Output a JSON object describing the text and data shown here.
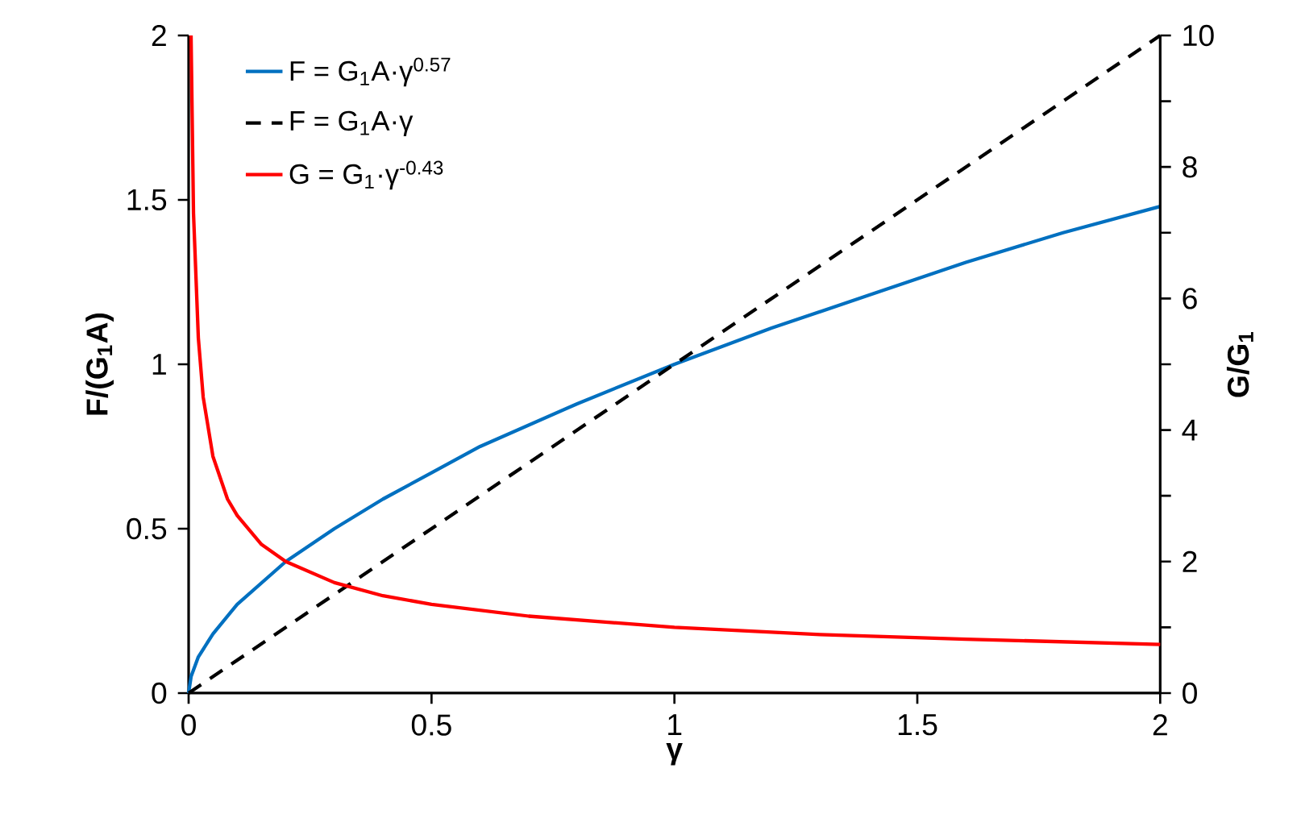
{
  "chart_data": {
    "type": "line",
    "xlabel": "γ",
    "ylabel": "F/(G$_{1}$A)",
    "y2label": "G/G$_{1}$",
    "xlim": [
      0,
      2
    ],
    "ylim": [
      0,
      2
    ],
    "y2lim": [
      0,
      10
    ],
    "xticks": [
      0,
      0.5,
      1,
      1.5,
      2
    ],
    "yticks": [
      0,
      0.5,
      1,
      1.5,
      2
    ],
    "y2ticks": [
      0,
      {
        "value": 1,
        "label": null
      },
      2,
      {
        "value": 3,
        "label": null
      },
      4,
      {
        "value": 5,
        "label": null
      },
      6,
      {
        "value": 7,
        "label": null
      },
      8,
      {
        "value": 9,
        "label": null
      },
      10
    ],
    "legend": "top left",
    "series": [
      {
        "name": "F = G$_{1}$A·γ$^{0.57}$",
        "color": "#0070c0",
        "line_style": "solid",
        "x": [
          0,
          0.005,
          0.02,
          0.05,
          0.1,
          0.2,
          0.3,
          0.4,
          0.5,
          0.6,
          0.8,
          1,
          1.2,
          1.4,
          1.6,
          1.8,
          2
        ],
        "values": [
          0,
          0.05,
          0.11,
          0.18,
          0.27,
          0.4,
          0.5,
          0.59,
          0.67,
          0.75,
          0.88,
          1,
          1.11,
          1.21,
          1.31,
          1.4,
          1.48
        ]
      },
      {
        "name": "F = G$_{1}$A·γ",
        "color": "#000000",
        "line_style": "dashed",
        "x": [
          0,
          2
        ],
        "values": [
          0,
          2
        ]
      },
      {
        "name": "G = G$_{1}$·γ$^{-0.43}$",
        "color": "#ff0000",
        "line_style": "solid",
        "axis": "y2",
        "x": [
          0.005,
          0.01,
          0.02,
          0.03,
          0.05,
          0.08,
          0.1,
          0.15,
          0.2,
          0.3,
          0.4,
          0.5,
          0.7,
          1,
          1.3,
          1.6,
          2
        ],
        "values": [
          10,
          7.3,
          5.4,
          4.5,
          3.6,
          2.95,
          2.7,
          2.26,
          2,
          1.68,
          1.48,
          1.35,
          1.17,
          1,
          0.89,
          0.82,
          0.74
        ]
      }
    ]
  }
}
